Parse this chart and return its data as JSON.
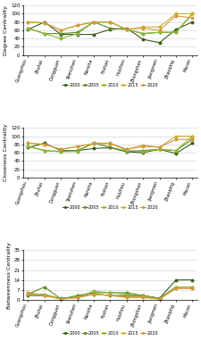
{
  "cities": [
    "Guangzhou",
    "Zhuhai",
    "Dongguan",
    "Shenzhen",
    "Nansha",
    "Foshan",
    "Huizhou",
    "Zhongshan",
    "Jiangmen",
    "Zhaoqing",
    "Macao"
  ],
  "years": [
    "2000",
    "2005",
    "2010",
    "2015",
    "2020"
  ],
  "colors": [
    "#3a5c1a",
    "#5a8c20",
    "#8ab832",
    "#c8b030",
    "#d49840"
  ],
  "degree_centrality": [
    [
      62,
      80,
      50,
      50,
      50,
      62,
      65,
      38,
      30,
      62,
      80
    ],
    [
      65,
      52,
      52,
      55,
      80,
      65,
      62,
      52,
      55,
      55,
      100
    ],
    [
      65,
      52,
      40,
      52,
      80,
      80,
      62,
      52,
      55,
      55,
      100
    ],
    [
      80,
      78,
      60,
      72,
      80,
      80,
      62,
      68,
      68,
      100,
      100
    ],
    [
      80,
      78,
      60,
      72,
      80,
      80,
      62,
      65,
      60,
      95,
      90
    ]
  ],
  "closeness_centrality": [
    [
      72,
      83,
      65,
      65,
      70,
      72,
      62,
      60,
      68,
      58,
      83
    ],
    [
      75,
      65,
      63,
      65,
      83,
      73,
      63,
      65,
      68,
      65,
      92
    ],
    [
      75,
      65,
      62,
      63,
      83,
      83,
      65,
      63,
      68,
      65,
      100
    ],
    [
      83,
      80,
      68,
      75,
      82,
      82,
      68,
      78,
      73,
      100,
      100
    ],
    [
      83,
      80,
      68,
      75,
      82,
      82,
      68,
      75,
      73,
      92,
      92
    ]
  ],
  "betweenness_centrality": [
    [
      3,
      3,
      1,
      2,
      4,
      3,
      3,
      3,
      1,
      14,
      14
    ],
    [
      4,
      9,
      0.5,
      3,
      5,
      5,
      5,
      3,
      1,
      9,
      9
    ],
    [
      4,
      4,
      0.5,
      2,
      6,
      5,
      4,
      3,
      0.5,
      9,
      9
    ],
    [
      5,
      3,
      0.5,
      1.5,
      4,
      3,
      1.5,
      1.5,
      0.5,
      8,
      8
    ],
    [
      5,
      3,
      0.5,
      1.5,
      4,
      3,
      2,
      2,
      0.5,
      8,
      8
    ]
  ],
  "degree_ylim": [
    0,
    120
  ],
  "closeness_ylim": [
    0,
    120
  ],
  "betweenness_ylim": [
    0,
    35
  ],
  "degree_yticks": [
    0,
    20,
    40,
    60,
    80,
    100,
    120
  ],
  "closeness_yticks": [
    0,
    20,
    40,
    60,
    80,
    100,
    120
  ],
  "betweenness_yticks": [
    0,
    7,
    14,
    21,
    28,
    35
  ],
  "ylabel_degree": "Degree Centrality",
  "ylabel_closeness": "Closeness Centrality",
  "ylabel_betweenness": "Betweenness Centrality"
}
